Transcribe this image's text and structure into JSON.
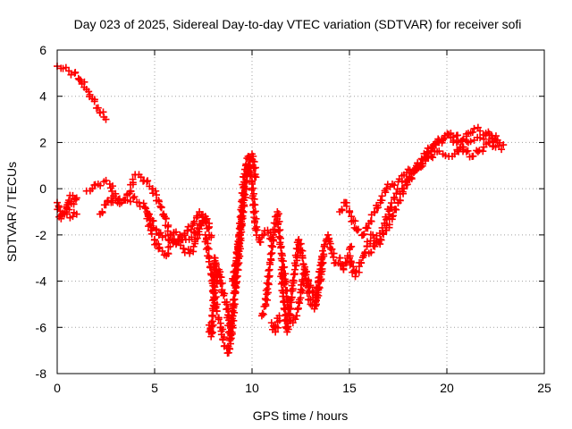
{
  "chart_data": {
    "type": "scatter",
    "title": "Day 023 of 2025, Sidereal Day-to-day VTEC variation (SDTVAR) for receiver sofi",
    "xlabel": "GPS time / hours",
    "ylabel": "SDTVAR / TECUs",
    "xlim": [
      0,
      25
    ],
    "ylim": [
      -8,
      6
    ],
    "xticks": [
      0,
      5,
      10,
      15,
      20,
      25
    ],
    "yticks": [
      -8,
      -6,
      -4,
      -2,
      0,
      2,
      4,
      6
    ],
    "grid": true,
    "marker": "+",
    "color": "#ff0000",
    "series": [
      {
        "name": "segment-1",
        "x": [
          0.0,
          0.3,
          0.6,
          0.9,
          1.2,
          1.5,
          1.8,
          2.1,
          2.4,
          2.5
        ],
        "y": [
          5.3,
          5.2,
          5.1,
          5.0,
          4.7,
          4.3,
          3.9,
          3.5,
          3.1,
          3.0
        ]
      },
      {
        "name": "segment-2",
        "x": [
          0.0,
          0.2,
          0.4,
          0.6,
          0.8,
          1.0,
          0.3,
          0.5,
          0.8,
          1.0
        ],
        "y": [
          -0.6,
          -1.3,
          -1.0,
          -0.5,
          -0.3,
          -0.4,
          -1.1,
          -1.1,
          -1.2,
          -1.1
        ]
      },
      {
        "name": "segment-3",
        "x": [
          1.5,
          1.8,
          2.1,
          2.4,
          2.7,
          3.0,
          3.3,
          3.6,
          3.9,
          4.2,
          4.5,
          4.8,
          5.1,
          5.4,
          5.7,
          6.0,
          6.3,
          6.6,
          6.9,
          7.2,
          7.5,
          7.8
        ],
        "y": [
          -0.1,
          0.0,
          0.2,
          0.3,
          0.2,
          -0.4,
          -0.6,
          -0.5,
          -0.4,
          -0.6,
          -0.8,
          -1.3,
          -1.8,
          -2.1,
          -2.2,
          -1.9,
          -2.0,
          -2.2,
          -2.1,
          -1.7,
          -1.4,
          -1.5
        ]
      },
      {
        "name": "segment-4",
        "x": [
          2.2,
          2.5,
          2.8,
          3.1,
          3.4,
          3.7,
          4.0,
          4.3,
          4.6,
          4.9,
          5.2,
          5.5,
          5.8,
          6.1,
          6.4,
          6.7,
          7.0,
          7.3,
          7.6,
          7.9
        ],
        "y": [
          -1.1,
          -0.7,
          -0.4,
          -0.6,
          -0.5,
          -0.2,
          0.6,
          0.5,
          0.3,
          0.0,
          -0.5,
          -1.2,
          -2.0,
          -2.4,
          -2.2,
          -1.8,
          -1.5,
          -1.0,
          -1.3,
          -2.1
        ]
      },
      {
        "name": "segment-5",
        "x": [
          4.6,
          4.8,
          5.0,
          5.2,
          5.4,
          5.6,
          5.8,
          6.0,
          6.2,
          6.5,
          6.8,
          7.0,
          7.2,
          7.4,
          7.6
        ],
        "y": [
          -1.0,
          -1.8,
          -2.2,
          -2.6,
          -2.7,
          -2.9,
          -2.5,
          -2.3,
          -2.2,
          -2.6,
          -2.8,
          -2.5,
          -2.0,
          -1.6,
          -1.2
        ]
      },
      {
        "name": "segment-6",
        "x": [
          7.6,
          7.8,
          8.0,
          8.2,
          8.4,
          8.6,
          8.8,
          9.0,
          9.2,
          9.4,
          9.6,
          9.8,
          10.0,
          10.2,
          10.4,
          10.6,
          10.8,
          11.0
        ],
        "y": [
          -2.0,
          -3.0,
          -4.2,
          -5.3,
          -6.0,
          -6.8,
          -7.1,
          -5.5,
          -3.5,
          -1.5,
          0.5,
          1.4,
          0.2,
          -1.8,
          -2.3,
          -2.0,
          -1.8,
          -2.2
        ]
      },
      {
        "name": "segment-7",
        "x": [
          7.8,
          7.9,
          8.0,
          8.1,
          8.2,
          8.3,
          8.5,
          8.7,
          8.9,
          9.1,
          9.3,
          9.5
        ],
        "y": [
          -5.9,
          -6.4,
          -5.5,
          -3.0,
          -4.0,
          -3.5,
          -4.5,
          -5.0,
          -6.5,
          -4.8,
          -3.0,
          -1.0
        ]
      },
      {
        "name": "segment-8",
        "x": [
          9.0,
          9.2,
          9.4,
          9.6,
          9.8,
          10.0,
          10.2
        ],
        "y": [
          -4.0,
          -3.0,
          -2.0,
          -0.5,
          1.0,
          1.5,
          0.5
        ]
      },
      {
        "name": "segment-9",
        "x": [
          10.5,
          10.7,
          10.9,
          11.1,
          11.3,
          11.5,
          11.7,
          11.9,
          12.1,
          12.3,
          12.5,
          12.7,
          12.9,
          13.1,
          13.3,
          13.5,
          13.7,
          13.9,
          14.1,
          14.3,
          14.5,
          14.7,
          14.9,
          15.1
        ],
        "y": [
          -5.5,
          -5.0,
          -3.5,
          -2.0,
          -1.0,
          -2.8,
          -4.0,
          -5.5,
          -5.8,
          -5.5,
          -4.5,
          -3.5,
          -4.0,
          -4.5,
          -5.0,
          -4.0,
          -2.5,
          -2.0,
          -2.8,
          -3.2,
          -3.0,
          -3.5,
          -3.0,
          -2.5
        ]
      },
      {
        "name": "segment-10",
        "x": [
          11.5,
          11.6,
          11.7,
          11.8,
          11.9,
          12.0,
          12.2,
          12.4,
          12.6,
          12.8,
          13.0,
          13.2,
          13.4,
          13.6
        ],
        "y": [
          -3.5,
          -4.5,
          -5.5,
          -6.2,
          -5.5,
          -4.8,
          -3.5,
          -2.2,
          -3.0,
          -4.0,
          -5.0,
          -5.2,
          -4.0,
          -3.0
        ]
      },
      {
        "name": "segment-11",
        "x": [
          11.0,
          11.2,
          11.4
        ],
        "y": [
          -5.8,
          -6.2,
          -5.5
        ]
      },
      {
        "name": "segment-12",
        "x": [
          14.5,
          14.8,
          15.1,
          15.4,
          15.7,
          16.0,
          16.3,
          16.6,
          16.9,
          17.2,
          17.5,
          17.8,
          18.1,
          18.4,
          18.7,
          19.0,
          19.3,
          19.6,
          19.9,
          20.2,
          20.5,
          20.8,
          21.1,
          21.4,
          21.7,
          22.0,
          22.3,
          22.6,
          22.9
        ],
        "y": [
          -1.0,
          -0.6,
          -1.2,
          -1.8,
          -2.0,
          -1.5,
          -1.0,
          -0.5,
          0.0,
          0.2,
          0.3,
          0.6,
          0.8,
          0.9,
          1.3,
          1.6,
          1.9,
          2.1,
          2.3,
          2.2,
          2.0,
          1.8,
          2.0,
          2.1,
          2.2,
          2.3,
          2.2,
          2.0,
          1.9
        ]
      },
      {
        "name": "segment-13",
        "x": [
          15.0,
          15.3,
          15.6,
          15.9,
          16.2,
          16.5,
          16.8,
          17.1,
          17.4,
          17.7,
          18.0,
          18.3,
          18.6,
          18.9,
          19.2,
          19.5,
          19.8,
          20.1,
          20.4,
          20.7,
          21.0,
          21.3,
          21.6,
          21.9,
          22.2,
          22.5,
          22.8
        ],
        "y": [
          -3.0,
          -3.8,
          -3.2,
          -2.5,
          -2.0,
          -2.3,
          -1.5,
          -0.8,
          -0.2,
          0.0,
          0.4,
          0.7,
          1.0,
          1.2,
          1.4,
          1.6,
          1.5,
          1.4,
          1.5,
          1.8,
          1.6,
          1.4,
          1.6,
          1.8,
          2.0,
          1.8,
          1.7
        ]
      },
      {
        "name": "segment-14",
        "x": [
          16.0,
          16.3,
          16.6,
          16.9,
          17.2,
          17.5,
          17.8,
          18.1,
          18.4,
          18.7,
          19.0,
          19.3,
          19.6,
          19.9,
          20.2,
          20.5,
          20.8,
          21.1,
          21.4,
          21.7,
          22.0,
          22.3,
          22.6
        ],
        "y": [
          -2.8,
          -2.5,
          -2.2,
          -1.8,
          -1.2,
          -0.6,
          0.0,
          0.5,
          0.8,
          1.1,
          1.4,
          1.8,
          2.0,
          2.2,
          2.4,
          2.3,
          2.1,
          2.4,
          2.6,
          2.5,
          2.4,
          2.3,
          2.1
        ]
      }
    ]
  }
}
